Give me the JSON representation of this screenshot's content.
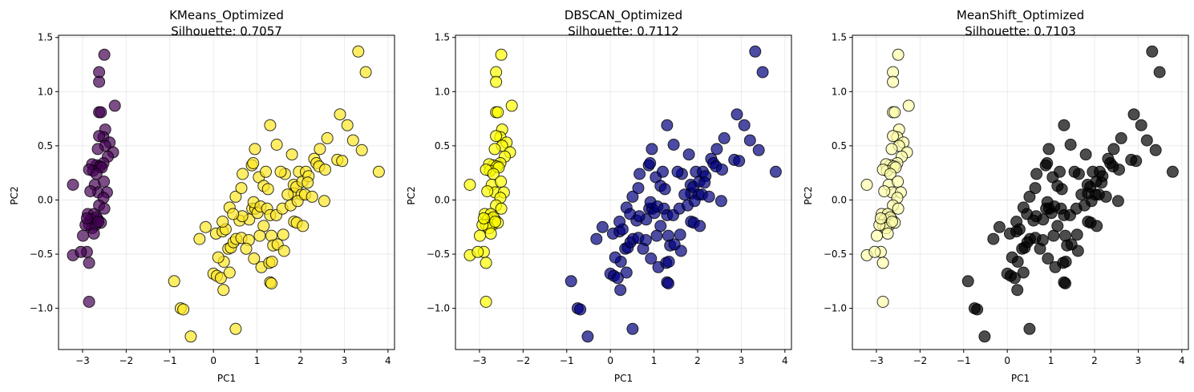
{
  "figure": {
    "background": "#ffffff"
  },
  "chart_data": [
    {
      "type": "scatter",
      "title_line1": "KMeans_Optimized",
      "title_line2": "Silhouette: 0.7057",
      "xlabel": "PC1",
      "ylabel": "PC2",
      "xlim": [
        -3.55,
        4.15
      ],
      "ylim": [
        -1.38,
        1.52
      ],
      "xticks": [
        -3,
        -2,
        -1,
        0,
        1,
        2,
        3,
        4
      ],
      "yticks": [
        -1.0,
        -0.5,
        0.0,
        0.5,
        1.0,
        1.5
      ],
      "xtick_labels": [
        "−3",
        "−2",
        "−1",
        "0",
        "1",
        "2",
        "3",
        "4"
      ],
      "ytick_labels": [
        "−1.0",
        "−0.5",
        "0.0",
        "0.5",
        "1.0",
        "1.5"
      ],
      "grid": true,
      "cluster_colors": [
        "#440154",
        "#fde725"
      ]
    },
    {
      "type": "scatter",
      "title_line1": "DBSCAN_Optimized",
      "title_line2": "Silhouette: 0.7112",
      "xlabel": "PC1",
      "ylabel": "PC2",
      "xlim": [
        -3.55,
        4.15
      ],
      "ylim": [
        -1.38,
        1.52
      ],
      "xticks": [
        -3,
        -2,
        -1,
        0,
        1,
        2,
        3,
        4
      ],
      "yticks": [
        -1.0,
        -0.5,
        0.0,
        0.5,
        1.0,
        1.5
      ],
      "xtick_labels": [
        "−3",
        "−2",
        "−1",
        "0",
        "1",
        "2",
        "3",
        "4"
      ],
      "ytick_labels": [
        "−1.0",
        "−0.5",
        "0.0",
        "0.5",
        "1.0",
        "1.5"
      ],
      "grid": true,
      "cluster_colors": [
        "#ffff00",
        "#00007f"
      ]
    },
    {
      "type": "scatter",
      "title_line1": "MeanShift_Optimized",
      "title_line2": "Silhouette: 0.7103",
      "xlabel": "PC1",
      "ylabel": "PC2",
      "xlim": [
        -3.55,
        4.15
      ],
      "ylim": [
        -1.38,
        1.52
      ],
      "xticks": [
        -3,
        -2,
        -1,
        0,
        1,
        2,
        3,
        4
      ],
      "yticks": [
        -1.0,
        -0.5,
        0.0,
        0.5,
        1.0,
        1.5
      ],
      "xtick_labels": [
        "−3",
        "−2",
        "−1",
        "0",
        "1",
        "2",
        "3",
        "4"
      ],
      "ytick_labels": [
        "−1.0",
        "−0.5",
        "0.0",
        "0.5",
        "1.0",
        "1.5"
      ],
      "grid": true,
      "cluster_colors": [
        "#ffffaa",
        "#000000"
      ]
    }
  ],
  "points": {
    "groupA": [
      [
        -2.5,
        1.34
      ],
      [
        -2.62,
        1.18
      ],
      [
        -2.62,
        1.09
      ],
      [
        -2.26,
        0.87
      ],
      [
        -2.62,
        0.81
      ],
      [
        -2.58,
        0.81
      ],
      [
        -2.48,
        0.65
      ],
      [
        -2.52,
        0.58
      ],
      [
        -2.62,
        0.59
      ],
      [
        -2.38,
        0.53
      ],
      [
        -2.48,
        0.5
      ],
      [
        -2.3,
        0.44
      ],
      [
        -2.65,
        0.47
      ],
      [
        -2.42,
        0.4
      ],
      [
        -2.52,
        0.34
      ],
      [
        -2.68,
        0.32
      ],
      [
        -2.78,
        0.33
      ],
      [
        -2.6,
        0.31
      ],
      [
        -2.76,
        0.27
      ],
      [
        -2.85,
        0.28
      ],
      [
        -2.56,
        0.3
      ],
      [
        -2.68,
        0.24
      ],
      [
        -2.72,
        0.14
      ],
      [
        -2.51,
        0.17
      ],
      [
        -2.64,
        0.07
      ],
      [
        -2.82,
        0.08
      ],
      [
        -2.44,
        0.07
      ],
      [
        -2.52,
        0.02
      ],
      [
        -3.22,
        0.14
      ],
      [
        -2.62,
        -0.05
      ],
      [
        -2.5,
        -0.08
      ],
      [
        -2.88,
        -0.13
      ],
      [
        -2.74,
        -0.13
      ],
      [
        -2.65,
        -0.18
      ],
      [
        -2.81,
        -0.18
      ],
      [
        -2.68,
        -0.16
      ],
      [
        -2.7,
        -0.23
      ],
      [
        -2.58,
        -0.21
      ],
      [
        -2.85,
        -0.23
      ],
      [
        -2.78,
        -0.26
      ],
      [
        -2.93,
        -0.23
      ],
      [
        -2.74,
        -0.31
      ],
      [
        -2.99,
        -0.33
      ],
      [
        -2.9,
        -0.48
      ],
      [
        -3.22,
        -0.51
      ],
      [
        -3.04,
        -0.48
      ],
      [
        -2.85,
        -0.58
      ],
      [
        -2.85,
        -0.94
      ],
      [
        -2.64,
        -0.2
      ],
      [
        -2.9,
        -0.17
      ]
    ],
    "groupB": [
      [
        -0.9,
        -0.75
      ],
      [
        -0.75,
        -1.0
      ],
      [
        -0.69,
        -1.01
      ],
      [
        -0.52,
        -1.26
      ],
      [
        0.51,
        -1.19
      ],
      [
        0.34,
        -0.45
      ],
      [
        0.0,
        -0.68
      ],
      [
        0.08,
        -0.7
      ],
      [
        0.17,
        -0.72
      ],
      [
        0.23,
        -0.83
      ],
      [
        0.37,
        -0.67
      ],
      [
        0.24,
        -0.57
      ],
      [
        0.4,
        -0.44
      ],
      [
        0.46,
        -0.39
      ],
      [
        -0.32,
        -0.36
      ],
      [
        0.52,
        -0.36
      ],
      [
        0.11,
        -0.53
      ],
      [
        -0.18,
        -0.25
      ],
      [
        0.06,
        -0.31
      ],
      [
        0.21,
        -0.29
      ],
      [
        0.28,
        -0.27
      ],
      [
        0.21,
        -0.2
      ],
      [
        0.37,
        -0.07
      ],
      [
        0.6,
        -0.19
      ],
      [
        0.82,
        -0.18
      ],
      [
        0.66,
        -0.15
      ],
      [
        0.45,
        -0.13
      ],
      [
        0.64,
        -0.35
      ],
      [
        0.89,
        -0.08
      ],
      [
        0.96,
        -0.08
      ],
      [
        0.51,
        0.03
      ],
      [
        0.64,
        0.11
      ],
      [
        0.67,
        0.24
      ],
      [
        0.88,
        0.32
      ],
      [
        0.91,
        0.34
      ],
      [
        0.95,
        0.47
      ],
      [
        1.3,
        0.69
      ],
      [
        1.45,
        0.51
      ],
      [
        1.04,
        0.21
      ],
      [
        1.2,
        0.26
      ],
      [
        1.15,
        0.13
      ],
      [
        1.25,
        0.1
      ],
      [
        1.01,
        -0.12
      ],
      [
        0.92,
        -0.02
      ],
      [
        1.08,
        -0.06
      ],
      [
        1.23,
        -0.08
      ],
      [
        1.3,
        -0.14
      ],
      [
        1.15,
        -0.24
      ],
      [
        1.44,
        -0.14
      ],
      [
        1.33,
        -0.33
      ],
      [
        1.37,
        -0.42
      ],
      [
        1.47,
        -0.41
      ],
      [
        1.6,
        -0.32
      ],
      [
        1.06,
        -0.33
      ],
      [
        0.81,
        -0.37
      ],
      [
        0.75,
        -0.45
      ],
      [
        0.93,
        -0.54
      ],
      [
        1.1,
        -0.62
      ],
      [
        1.28,
        -0.58
      ],
      [
        1.34,
        -0.57
      ],
      [
        1.62,
        -0.47
      ],
      [
        1.3,
        -0.76
      ],
      [
        1.33,
        -0.77
      ],
      [
        1.58,
        -0.08
      ],
      [
        1.77,
        -0.05
      ],
      [
        1.85,
        -0.2
      ],
      [
        1.91,
        -0.21
      ],
      [
        2.05,
        -0.24
      ],
      [
        1.64,
        0.24
      ],
      [
        1.54,
        0.26
      ],
      [
        1.84,
        0.14
      ],
      [
        1.85,
        0.06
      ],
      [
        1.9,
        0.12
      ],
      [
        2.02,
        0.05
      ],
      [
        1.93,
        -0.01
      ],
      [
        1.8,
        0.42
      ],
      [
        1.96,
        0.26
      ],
      [
        2.04,
        0.17
      ],
      [
        2.1,
        0.05
      ],
      [
        2.12,
        0.26
      ],
      [
        2.18,
        0.22
      ],
      [
        2.26,
        0.03
      ],
      [
        2.31,
        0.38
      ],
      [
        2.36,
        0.34
      ],
      [
        2.42,
        0.31
      ],
      [
        2.44,
        0.47
      ],
      [
        2.56,
        0.28
      ],
      [
        2.61,
        0.57
      ],
      [
        2.54,
        -0.01
      ],
      [
        2.84,
        0.37
      ],
      [
        2.95,
        0.36
      ],
      [
        2.9,
        0.79
      ],
      [
        3.07,
        0.69
      ],
      [
        3.2,
        0.55
      ],
      [
        3.32,
        1.37
      ],
      [
        3.49,
        1.18
      ],
      [
        3.4,
        0.46
      ],
      [
        3.79,
        0.26
      ],
      [
        2.16,
        0.16
      ],
      [
        1.7,
        0.05
      ]
    ],
    "membership": [
      {
        "groupA": 0,
        "groupB": 1
      },
      {
        "groupA": 0,
        "groupB": 1
      },
      {
        "groupA": 0,
        "groupB": 1
      }
    ]
  }
}
